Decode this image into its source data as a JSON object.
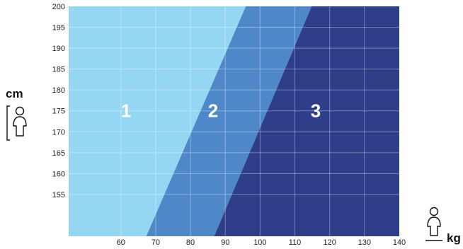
{
  "chart_data": {
    "type": "area",
    "title": "",
    "xlabel": "kg",
    "ylabel": "cm",
    "xlim": [
      45,
      140
    ],
    "ylim": [
      145,
      200
    ],
    "x_ticks": [
      60,
      70,
      80,
      90,
      100,
      110,
      120,
      130,
      140
    ],
    "y_ticks": [
      155,
      160,
      165,
      170,
      175,
      180,
      185,
      190,
      195,
      200
    ],
    "grid": true,
    "zones": [
      {
        "label": "1",
        "color": "#95d6f2",
        "polygon": [
          [
            45,
            145
          ],
          [
            67.3,
            145
          ],
          [
            95.9,
            200
          ],
          [
            45,
            200
          ]
        ]
      },
      {
        "label": "2",
        "color": "#4f88c9",
        "polygon": [
          [
            67.3,
            145
          ],
          [
            86.8,
            145
          ],
          [
            114.8,
            200
          ],
          [
            95.9,
            200
          ]
        ]
      },
      {
        "label": "3",
        "color": "#2e3e88",
        "polygon": [
          [
            86.8,
            145
          ],
          [
            140,
            145
          ],
          [
            140,
            200
          ],
          [
            114.8,
            200
          ]
        ]
      }
    ],
    "zone_label_positions": [
      [
        61.5,
        175
      ],
      [
        86.5,
        175
      ],
      [
        116,
        175
      ]
    ]
  },
  "axis": {
    "y_unit": "cm",
    "x_unit": "kg",
    "y_icon": "person-bracket-icon",
    "x_icon": "person-on-scale-icon"
  }
}
